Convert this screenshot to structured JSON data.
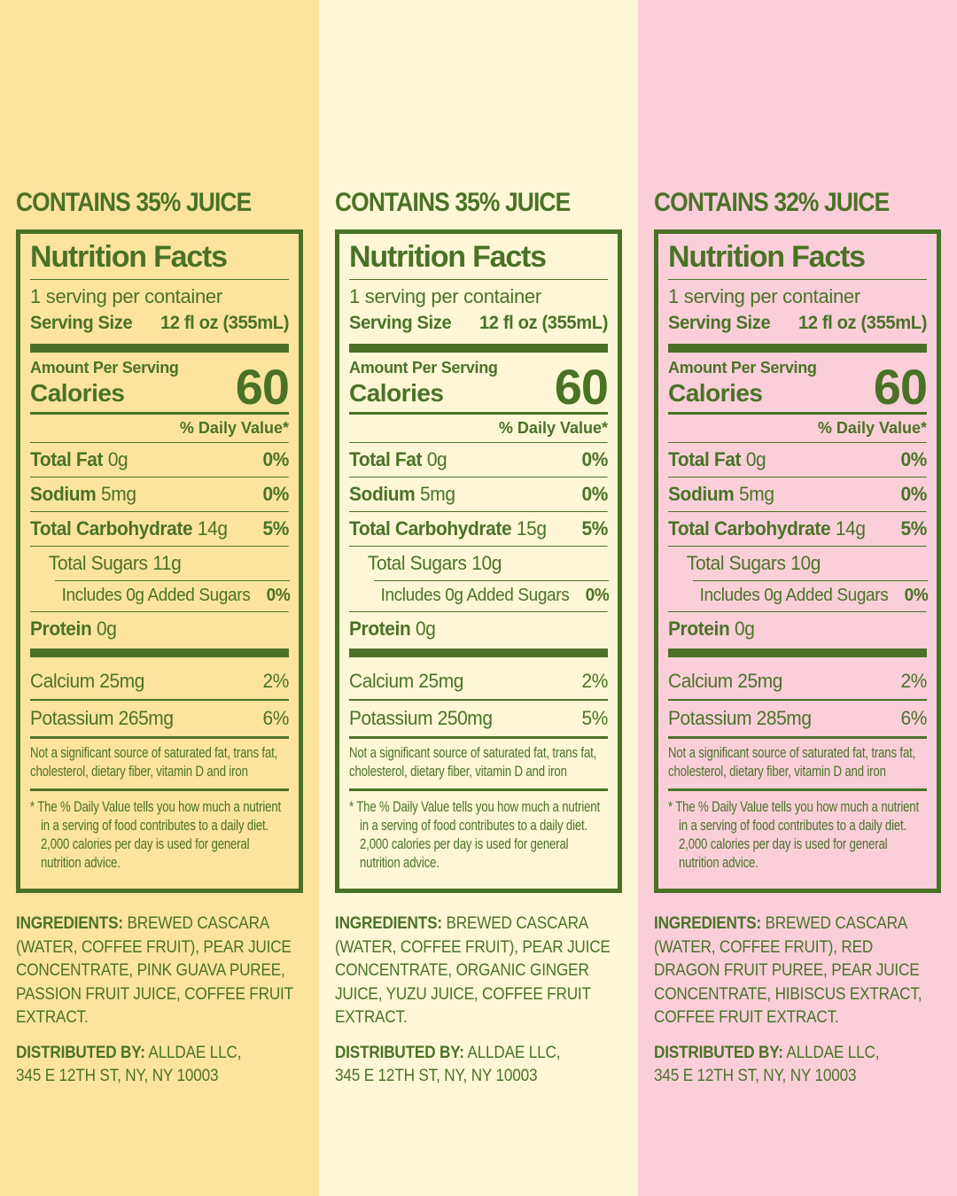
{
  "colors": {
    "green": "#4A7227",
    "panel_backgrounds": [
      "#FCE49E",
      "#FDF7D7",
      "#FACFD9"
    ]
  },
  "shared": {
    "nutrition_facts_title": "Nutrition Facts",
    "servings_per_container": "1 serving per container",
    "serving_size_label": "Serving Size",
    "serving_size_value": "12 fl oz (355mL)",
    "amount_per_serving": "Amount Per Serving",
    "calories_label": "Calories",
    "calories_value": "60",
    "daily_value_header": "% Daily Value*",
    "total_fat_label": "Total Fat",
    "total_fat_value": "0g",
    "total_fat_dv": "0%",
    "sodium_label": "Sodium",
    "sodium_value": "5mg",
    "sodium_dv": "0%",
    "total_carb_label": "Total Carbohydrate",
    "total_sugars_label": "Total Sugars",
    "added_sugars_label": "Includes 0g Added Sugars",
    "added_sugars_dv": "0%",
    "protein_label": "Protein",
    "protein_value": "0g",
    "calcium_label": "Calcium 25mg",
    "calcium_dv": "2%",
    "not_significant": "Not a significant source of saturated fat, trans fat, cholesterol, dietary fiber, vitamin D and iron",
    "footnote_marker": "*",
    "footnote": "The % Daily Value tells you how much a nutrient in a serving of food contributes to a daily diet. 2,000 calories per day is used for general nutrition advice.",
    "ingredients_label": "INGREDIENTS:",
    "distributed_label": "DISTRIBUTED BY:",
    "distributed_line1": "ALLDAE LLC,",
    "distributed_line2": "345 E 12TH ST, NY, NY 10003"
  },
  "panels": [
    {
      "contains": "CONTAINS 35% JUICE",
      "background": "#FCE49E",
      "total_carb_value": "14g",
      "total_carb_dv": "5%",
      "total_sugars_value": "11g",
      "potassium_label": "Potassium 265mg",
      "potassium_dv": "6%",
      "ingredients": "BREWED CASCARA (WATER, COFFEE FRUIT), PEAR JUICE CONCENTRATE, PINK GUAVA PUREE, PASSION FRUIT JUICE, COFFEE FRUIT EXTRACT."
    },
    {
      "contains": "CONTAINS 35% JUICE",
      "background": "#FDF7D7",
      "total_carb_value": "15g",
      "total_carb_dv": "5%",
      "total_sugars_value": "10g",
      "potassium_label": "Potassium 250mg",
      "potassium_dv": "5%",
      "ingredients": "BREWED CASCARA (WATER, COFFEE FRUIT), PEAR JUICE CONCENTRATE, ORGANIC GINGER JUICE, YUZU JUICE, COFFEE FRUIT EXTRACT."
    },
    {
      "contains": "CONTAINS 32% JUICE",
      "background": "#FACFD9",
      "total_carb_value": "14g",
      "total_carb_dv": "5%",
      "total_sugars_value": "10g",
      "potassium_label": "Potassium 285mg",
      "potassium_dv": "6%",
      "ingredients": "BREWED CASCARA (WATER, COFFEE FRUIT), RED DRAGON FRUIT PUREE, PEAR JUICE CONCENTRATE, HIBISCUS EXTRACT, COFFEE FRUIT EXTRACT."
    }
  ]
}
